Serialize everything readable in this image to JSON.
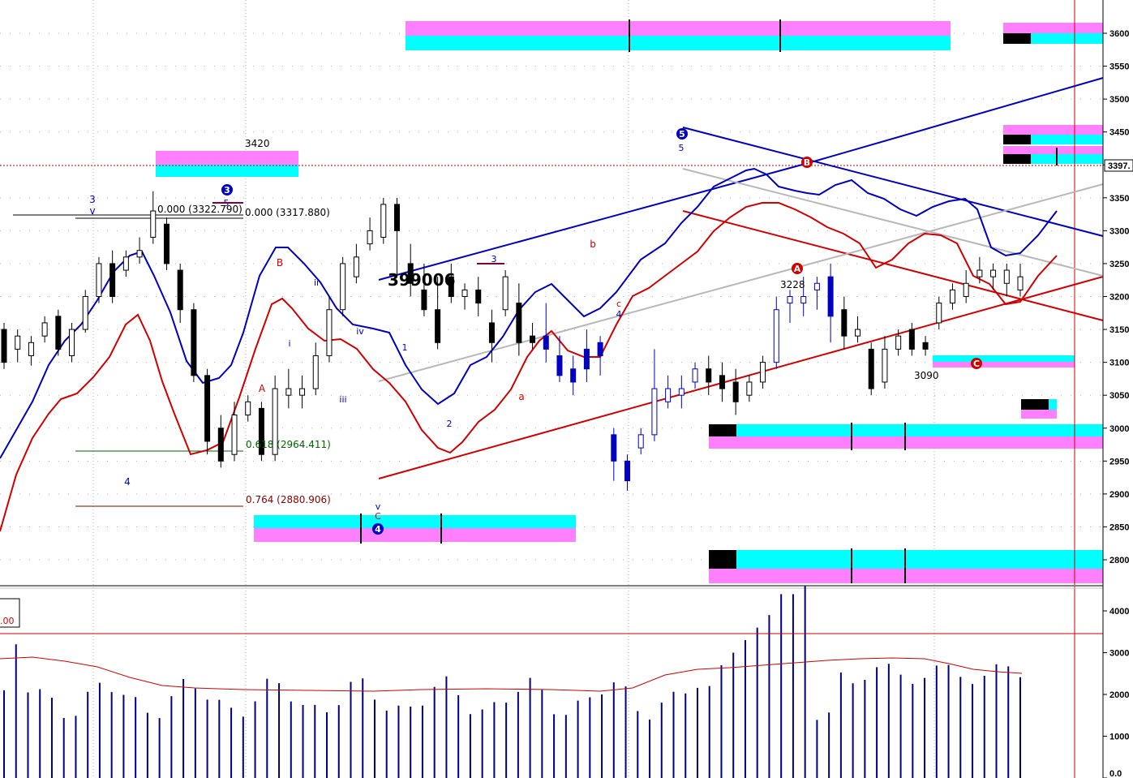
{
  "colors": {
    "background": "#ffffff",
    "blue": "#0000c0",
    "red": "#d00000",
    "green": "#006400",
    "darkred": "#8b0000",
    "cyan": "#00ffff",
    "magenta": "#ff80ff",
    "gray": "#b8b8b8",
    "black": "#000000"
  },
  "chart_data": {
    "type": "candlestick",
    "price_axis": {
      "ticks": [
        "3600",
        "3550",
        "3500",
        "3450",
        "3400",
        "3350",
        "3300",
        "3250",
        "3200",
        "3150",
        "3100",
        "3050",
        "3000",
        "2950",
        "2900",
        "2850",
        "2800"
      ],
      "last_price_label": "3397.",
      "range": [
        2780,
        3630
      ]
    },
    "volume_axis": {
      "ticks": [
        "4000",
        "3000",
        "2000",
        "1000",
        "0.0"
      ],
      "range": [
        0,
        4600
      ]
    },
    "volume_level_label": ".00",
    "candles": [
      [
        3150,
        3100,
        3160,
        3090,
        "b"
      ],
      [
        3120,
        3140,
        3150,
        3100,
        "w"
      ],
      [
        3110,
        3130,
        3140,
        3095,
        "w"
      ],
      [
        3140,
        3160,
        3170,
        3130,
        "w"
      ],
      [
        3170,
        3120,
        3180,
        3110,
        "b"
      ],
      [
        3110,
        3150,
        3160,
        3100,
        "w"
      ],
      [
        3150,
        3200,
        3210,
        3145,
        "w"
      ],
      [
        3200,
        3250,
        3260,
        3190,
        "w"
      ],
      [
        3250,
        3200,
        3270,
        3190,
        "b"
      ],
      [
        3240,
        3260,
        3270,
        3230,
        "w"
      ],
      [
        3260,
        3270,
        3290,
        3250,
        "w"
      ],
      [
        3290,
        3330,
        3360,
        3280,
        "w"
      ],
      [
        3310,
        3250,
        3320,
        3240,
        "b"
      ],
      [
        3240,
        3180,
        3250,
        3160,
        "b"
      ],
      [
        3180,
        3080,
        3190,
        3070,
        "b"
      ],
      [
        3080,
        2980,
        3090,
        2960,
        "b"
      ],
      [
        3000,
        2950,
        3020,
        2940,
        "b"
      ],
      [
        2960,
        3020,
        3040,
        2950,
        "w"
      ],
      [
        3020,
        3040,
        3050,
        3010,
        "w"
      ],
      [
        3030,
        2960,
        3040,
        2950,
        "b"
      ],
      [
        2960,
        3060,
        3080,
        2950,
        "w"
      ],
      [
        3060,
        3050,
        3090,
        3030,
        "w"
      ],
      [
        3050,
        3060,
        3080,
        3030,
        "w"
      ],
      [
        3060,
        3110,
        3130,
        3050,
        "w"
      ],
      [
        3110,
        3180,
        3200,
        3100,
        "w"
      ],
      [
        3180,
        3250,
        3260,
        3170,
        "w"
      ],
      [
        3230,
        3260,
        3280,
        3220,
        "w"
      ],
      [
        3280,
        3300,
        3320,
        3270,
        "w"
      ],
      [
        3290,
        3340,
        3350,
        3280,
        "w"
      ],
      [
        3340,
        3300,
        3350,
        3230,
        "b"
      ],
      [
        3250,
        3220,
        3280,
        3200,
        "b"
      ],
      [
        3210,
        3180,
        3250,
        3170,
        "b"
      ],
      [
        3180,
        3130,
        3230,
        3120,
        "b"
      ],
      [
        3230,
        3200,
        3250,
        3190,
        "b"
      ],
      [
        3200,
        3210,
        3220,
        3180,
        "w"
      ],
      [
        3210,
        3190,
        3230,
        3170,
        "b"
      ],
      [
        3160,
        3130,
        3180,
        3100,
        "b"
      ],
      [
        3180,
        3230,
        3240,
        3170,
        "w"
      ],
      [
        3190,
        3130,
        3220,
        3110,
        "b"
      ],
      [
        3140,
        3130,
        3160,
        3120,
        "b"
      ],
      [
        3140,
        3120,
        3190,
        3100,
        "b"
      ],
      [
        3110,
        3080,
        3140,
        3070,
        "b"
      ],
      [
        3090,
        3070,
        3110,
        3050,
        "b"
      ],
      [
        3120,
        3090,
        3150,
        3070,
        "b"
      ],
      [
        3130,
        3110,
        3140,
        3080,
        "b"
      ],
      [
        2990,
        2950,
        3000,
        2920,
        "b"
      ],
      [
        2950,
        2920,
        2960,
        2905,
        "b"
      ],
      [
        2970,
        2990,
        3000,
        2960,
        "w"
      ],
      [
        2990,
        3060,
        3120,
        2980,
        "w"
      ],
      [
        3060,
        3040,
        3080,
        3030,
        "w"
      ],
      [
        3050,
        3060,
        3080,
        3030,
        "w"
      ],
      [
        3070,
        3090,
        3100,
        3060,
        "w"
      ],
      [
        3090,
        3070,
        3110,
        3050,
        "b"
      ],
      [
        3080,
        3060,
        3100,
        3040,
        "b"
      ],
      [
        3070,
        3040,
        3090,
        3020,
        "b"
      ],
      [
        3050,
        3070,
        3080,
        3040,
        "w"
      ],
      [
        3070,
        3100,
        3110,
        3060,
        "w"
      ],
      [
        3100,
        3180,
        3200,
        3090,
        "w"
      ],
      [
        3190,
        3200,
        3210,
        3160,
        "w"
      ],
      [
        3190,
        3200,
        3230,
        3170,
        "w"
      ],
      [
        3210,
        3220,
        3230,
        3180,
        "w"
      ],
      [
        3230,
        3170,
        3250,
        3130,
        "b"
      ],
      [
        3180,
        3140,
        3200,
        3120,
        "b"
      ],
      [
        3140,
        3150,
        3170,
        3130,
        "w"
      ],
      [
        3120,
        3060,
        3130,
        3050,
        "b"
      ],
      [
        3070,
        3120,
        3140,
        3060,
        "w"
      ],
      [
        3120,
        3140,
        3150,
        3110,
        "w"
      ],
      [
        3150,
        3120,
        3160,
        3110,
        "b"
      ],
      [
        3130,
        3120,
        3140,
        3110,
        "b"
      ],
      [
        3160,
        3190,
        3200,
        3150,
        "w"
      ],
      [
        3190,
        3210,
        3220,
        3180,
        "w"
      ],
      [
        3200,
        3220,
        3240,
        3190,
        "w"
      ],
      [
        3230,
        3240,
        3260,
        3220,
        "w"
      ],
      [
        3240,
        3230,
        3250,
        3210,
        "w"
      ],
      [
        3240,
        3220,
        3250,
        3200,
        "w"
      ],
      [
        3230,
        3210,
        3250,
        3200,
        "w"
      ]
    ],
    "annotations": [
      {
        "text": "3420"
      },
      {
        "text": "0.000 (3322.790)"
      },
      {
        "text": "0.000 (3317.880)"
      },
      {
        "text": "0.618 (2964.411)"
      },
      {
        "text": "0.764 (2880.906)"
      },
      {
        "text": "399006"
      },
      {
        "text": "3228"
      },
      {
        "text": "3090"
      }
    ],
    "wave_labels": [
      "3",
      "v",
      "3",
      "5",
      "B",
      "ii",
      "i",
      "iv",
      "iii",
      "A",
      "4",
      "1",
      "2",
      "3",
      "b",
      "a",
      "c",
      "4",
      "5",
      "5",
      "v",
      "C",
      "4",
      "A",
      "B",
      "C"
    ]
  },
  "labels": {
    "l3420": "3420",
    "fib0a": "0.000 (3322.790)",
    "fib0b": "0.000 (3317.880)",
    "fib618": "0.618 (2964.411)",
    "fib764": "0.764 (2880.906)",
    "big": "399006",
    "l3228": "3228",
    "l3090": "3090",
    "w3": "3",
    "wv": "v",
    "w4a": "4",
    "c3": "3",
    "w5a": "5",
    "wB": "B",
    "wii": "ii",
    "wi": "i",
    "wiv": "iv",
    "wiii": "iii",
    "wA": "A",
    "w1": "1",
    "w2": "2",
    "w3b": "3",
    "wb": "b",
    "wa": "a",
    "wc": "c",
    "w4b": "4",
    "c5": "5",
    "w5b": "5",
    "wv2": "v",
    "wC": "C",
    "c4": "4",
    "cA": "A",
    "cB": "B",
    "cC": "C"
  }
}
